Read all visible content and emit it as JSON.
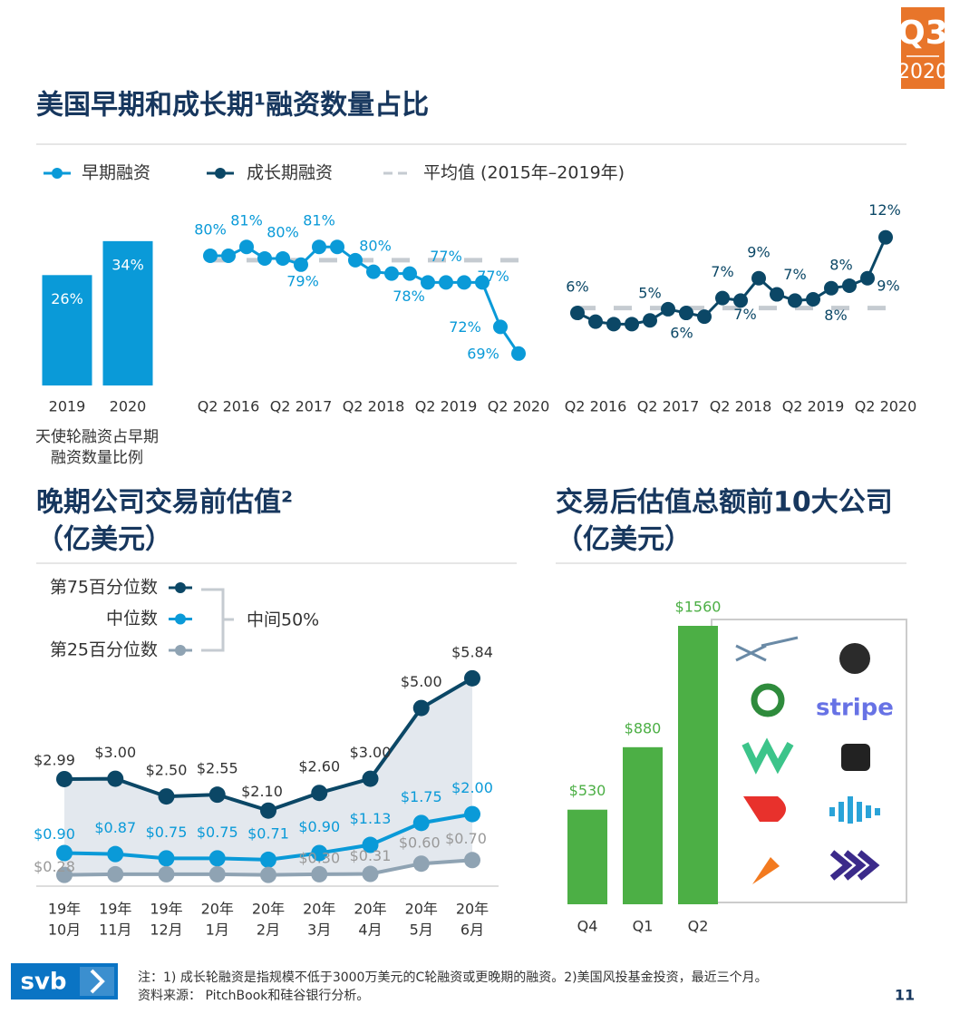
{
  "badge": {
    "quarter": "Q3",
    "year": "2020"
  },
  "section_title": "美国早期和成长期¹融资数量占比",
  "page_number": "11",
  "footer": {
    "logo": "svb",
    "notes": "注：1) 成长轮融资是指规模不低于3000万美元的C轮融资或更晚期的融资。2)美国风投基金投资，最近三个月。",
    "source": "资料来源： PitchBook和硅谷银行分析。"
  },
  "chart_data": [
    {
      "type": "bar",
      "categories": [
        "2019",
        "2020"
      ],
      "values": [
        26,
        34
      ],
      "value_labels": [
        "26%",
        "34%"
      ],
      "color": "#0a9ad8",
      "ylim": [
        0,
        36
      ],
      "caption": [
        "天使轮融资占早期",
        "融资数量比例"
      ]
    },
    {
      "type": "line",
      "categories": [
        null,
        "Q2 2016",
        null,
        null,
        null,
        "Q2 2017",
        null,
        null,
        null,
        "Q2 2018",
        null,
        null,
        null,
        "Q2 2019",
        null,
        null,
        null,
        "Q2 2020"
      ],
      "ylim": [
        68,
        82
      ],
      "series": [
        {
          "name": "早期融资",
          "color": "#0a9ad8",
          "values": [
            80,
            80,
            81,
            79.7,
            79.7,
            79,
            81,
            81,
            79.5,
            78.2,
            78,
            78,
            77,
            77,
            77,
            77,
            72,
            69
          ],
          "value_labels": [
            "80%",
            null,
            "81%",
            null,
            "80%",
            "79%",
            "81%",
            null,
            "80%",
            null,
            null,
            "78%",
            null,
            "77%",
            null,
            "77%",
            "72%",
            "69%"
          ]
        },
        {
          "name": "平均值 (2015年–2019年)",
          "color": "#c5cbd1",
          "value": 79.5
        }
      ]
    },
    {
      "type": "line",
      "categories": [
        null,
        "Q2 2016",
        null,
        null,
        null,
        "Q2 2017",
        null,
        null,
        null,
        "Q2 2018",
        null,
        null,
        null,
        "Q2 2019",
        null,
        null,
        null,
        "Q2 2020"
      ],
      "ylim": [
        5,
        12.5
      ],
      "series": [
        {
          "name": "成长期融资",
          "color": "#0b4766",
          "values": [
            6,
            5.3,
            5.1,
            5.1,
            5.4,
            6.3,
            6,
            5.7,
            7.2,
            7,
            8.8,
            7.5,
            7,
            7.1,
            8,
            8.2,
            8.8,
            12.1
          ],
          "value_labels": [
            "6%",
            null,
            null,
            null,
            "5%",
            null,
            "6%",
            null,
            "7%",
            "7%",
            "9%",
            null,
            "7%",
            null,
            "8%",
            "8%",
            "9%",
            "12%"
          ]
        },
        {
          "color": "#c5cbd1",
          "value": 6.4
        }
      ]
    },
    {
      "type": "line",
      "title": [
        "晚期公司交易前估值²",
        "（亿美元）"
      ],
      "bracket_label": "中间50%",
      "categories": [
        [
          "19年",
          "10月"
        ],
        [
          "19年",
          "11月"
        ],
        [
          "19年",
          "12月"
        ],
        [
          "20年",
          "1月"
        ],
        [
          "20年",
          "2月"
        ],
        [
          "20年",
          "3月"
        ],
        [
          "20年",
          "4月"
        ],
        [
          "20年",
          "5月"
        ],
        [
          "20年",
          "6月"
        ]
      ],
      "ylim": [
        0,
        6
      ],
      "band_color": "#e3e8ee",
      "series": [
        {
          "name": "第75百分位数",
          "color": "#0b4766",
          "values": [
            2.99,
            3.0,
            2.5,
            2.55,
            2.1,
            2.6,
            3.0,
            5.0,
            5.84
          ],
          "value_labels": [
            "$2.99",
            "$3.00",
            "$2.50",
            "$2.55",
            "$2.10",
            "$2.60",
            "$3.00",
            "$5.00",
            "$5.84"
          ]
        },
        {
          "name": "中位数",
          "color": "#0a9ad8",
          "values": [
            0.9,
            0.87,
            0.75,
            0.75,
            0.71,
            0.9,
            1.13,
            1.75,
            2.0
          ],
          "value_labels": [
            "$0.90",
            "$0.87",
            "$0.75",
            "$0.75",
            "$0.71",
            "$0.90",
            "$1.13",
            "$1.75",
            "$2.00"
          ]
        },
        {
          "name": "第25百分位数",
          "color": "#8fa3b3",
          "values": [
            0.28,
            0.3,
            0.3,
            0.3,
            0.28,
            0.3,
            0.31,
            0.6,
            0.7
          ],
          "value_labels": [
            "$0.28",
            null,
            null,
            null,
            null,
            "$0.30",
            "$0.31",
            "$0.60",
            "$0.70"
          ]
        }
      ]
    },
    {
      "type": "bar",
      "title": [
        "交易后估值总额前10大公司",
        "（亿美元）"
      ],
      "categories": [
        "Q4",
        "Q1",
        "Q2"
      ],
      "values": [
        530,
        880,
        1560
      ],
      "value_labels": [
        "$530",
        "$880",
        "$1560"
      ],
      "color": "#4caf45",
      "ylim": [
        0,
        1560
      ],
      "logo_text": "stripe"
    }
  ]
}
